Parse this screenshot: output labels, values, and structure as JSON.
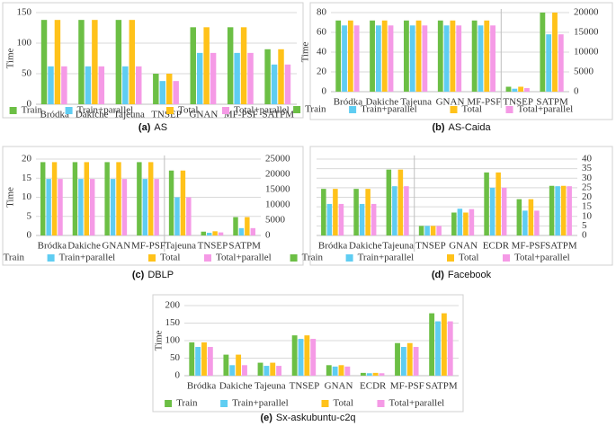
{
  "chart_data": [
    {
      "type": "bar",
      "label": "(a)",
      "title": "AS",
      "ylabel": "Time",
      "categories": [
        "Bródka",
        "Dakiche",
        "Tajeuna",
        "TNSEP",
        "GNAN",
        "MF-PSF",
        "SATPM"
      ],
      "ylim": [
        0,
        150
      ],
      "yticks": [
        0,
        50,
        100,
        150
      ],
      "grid": true,
      "series": [
        {
          "name": "Train",
          "color": "#6cbf45",
          "values": [
            138,
            138,
            138,
            50,
            126,
            126,
            90
          ]
        },
        {
          "name": "Train+parallel",
          "color": "#5fcdf2",
          "values": [
            62,
            62,
            62,
            38,
            84,
            84,
            65
          ]
        },
        {
          "name": "Total",
          "color": "#ffc21a",
          "values": [
            138,
            138,
            138,
            50,
            126,
            126,
            90
          ]
        },
        {
          "name": "Total+parallel",
          "color": "#f59ae6",
          "values": [
            62,
            62,
            62,
            38,
            84,
            84,
            65
          ]
        }
      ]
    },
    {
      "type": "bar",
      "label": "(b)",
      "title": "AS-Caida",
      "ylabel": "Time",
      "categories": [
        "Bródka",
        "Dakiche",
        "Tajeuna",
        "GNAN",
        "MF-PSF",
        "TNSEP",
        "SATPM"
      ],
      "ylim": [
        0,
        80
      ],
      "yticks": [
        0,
        20,
        40,
        60,
        80
      ],
      "y2lim": [
        0,
        20000
      ],
      "y2ticks": [
        0,
        5000,
        10000,
        15000,
        20000
      ],
      "grid": true,
      "series": [
        {
          "name": "Train",
          "color": "#6cbf45",
          "values": [
            72,
            72,
            72,
            72,
            72,
            null,
            null
          ]
        },
        {
          "name": "Train+parallel",
          "color": "#5fcdf2",
          "values": [
            67,
            67,
            67,
            67,
            67,
            null,
            null
          ]
        },
        {
          "name": "Total",
          "color": "#ffc21a",
          "values": [
            72,
            72,
            72,
            72,
            72,
            null,
            null
          ]
        },
        {
          "name": "Total+parallel",
          "color": "#f59ae6",
          "values": [
            67,
            67,
            67,
            67,
            67,
            null,
            null
          ]
        },
        {
          "color": "#6cbf45",
          "axis": "y2",
          "values": [
            null,
            null,
            null,
            null,
            null,
            1250,
            20000
          ]
        },
        {
          "color": "#5fcdf2",
          "axis": "y2",
          "values": [
            null,
            null,
            null,
            null,
            null,
            750,
            14500
          ]
        },
        {
          "color": "#ffc21a",
          "axis": "y2",
          "values": [
            null,
            null,
            null,
            null,
            null,
            1250,
            20000
          ]
        },
        {
          "color": "#f59ae6",
          "axis": "y2",
          "values": [
            null,
            null,
            null,
            null,
            null,
            900,
            14500
          ]
        }
      ]
    },
    {
      "type": "bar",
      "label": "(c)",
      "title": "DBLP",
      "ylabel": "Time",
      "categories": [
        "Bródka",
        "Dakiche",
        "GNAN",
        "MF-PSF",
        "Tajeuna",
        "TNSEP",
        "SATPM"
      ],
      "ylim": [
        0,
        20
      ],
      "yticks": [
        0,
        5,
        10,
        15,
        20
      ],
      "y2lim": [
        0,
        25000
      ],
      "y2ticks": [
        0,
        5000,
        10000,
        15000,
        20000,
        25000
      ],
      "grid": true,
      "series": [
        {
          "name": "Train",
          "color": "#6cbf45",
          "values": [
            19.2,
            19.2,
            19.2,
            19.2,
            null,
            null,
            null
          ]
        },
        {
          "name": "Train+parallel",
          "color": "#5fcdf2",
          "values": [
            14.8,
            14.8,
            14.8,
            14.8,
            null,
            null,
            null
          ]
        },
        {
          "name": "Total",
          "color": "#ffc21a",
          "values": [
            19.2,
            19.2,
            19.2,
            19.2,
            null,
            null,
            null
          ]
        },
        {
          "name": "Total+parallel",
          "color": "#f59ae6",
          "values": [
            14.8,
            14.8,
            14.8,
            14.8,
            null,
            null,
            null
          ]
        },
        {
          "color": "#6cbf45",
          "axis": "y2",
          "values": [
            null,
            null,
            null,
            null,
            21250,
            1250,
            6000
          ]
        },
        {
          "color": "#5fcdf2",
          "axis": "y2",
          "values": [
            null,
            null,
            null,
            null,
            12500,
            875,
            2400
          ]
        },
        {
          "color": "#ffc21a",
          "axis": "y2",
          "values": [
            null,
            null,
            null,
            null,
            21250,
            1375,
            6000
          ]
        },
        {
          "color": "#f59ae6",
          "axis": "y2",
          "values": [
            null,
            null,
            null,
            null,
            12500,
            1000,
            2400
          ]
        }
      ]
    },
    {
      "type": "bar",
      "label": "(d)",
      "title": "Facebook",
      "categories": [
        "Bródka",
        "Dakiche",
        "Tajeuna",
        "TNSEP",
        "GNAN",
        "ECDR",
        "MF-PSF",
        "SATPM"
      ],
      "y2lim": [
        0,
        40
      ],
      "y2ticks": [
        0,
        5,
        10,
        15,
        20,
        25,
        30,
        35,
        40
      ],
      "grid": true,
      "series": [
        {
          "name": "Train",
          "color": "#6cbf45",
          "axis": "y2",
          "values": [
            24.4,
            24.4,
            34.5,
            5,
            12,
            33,
            19,
            26
          ]
        },
        {
          "name": "Train+parallel",
          "color": "#5fcdf2",
          "axis": "y2",
          "values": [
            16.5,
            16.5,
            25.8,
            5,
            14,
            25,
            13,
            25.8
          ]
        },
        {
          "name": "Total",
          "color": "#ffc21a",
          "axis": "y2",
          "values": [
            24.4,
            24.4,
            34.5,
            5,
            12,
            33,
            19,
            26
          ]
        },
        {
          "name": "Total+parallel",
          "color": "#f59ae6",
          "axis": "y2",
          "values": [
            16.5,
            16.5,
            25.8,
            5,
            13.8,
            25,
            13,
            25.8
          ]
        }
      ]
    },
    {
      "type": "bar",
      "label": "(e)",
      "title": "Sx-askubuntu-c2q",
      "ylabel": "Time",
      "categories": [
        "Bródka",
        "Dakiche",
        "Tajeuna",
        "TNSEP",
        "GNAN",
        "ECDR",
        "MF-PSF",
        "SATPM"
      ],
      "ylim": [
        0,
        200
      ],
      "yticks": [
        0,
        50,
        100,
        150,
        200
      ],
      "grid": true,
      "series": [
        {
          "name": "Train",
          "color": "#6cbf45",
          "values": [
            95,
            60,
            37,
            115,
            30,
            8,
            93,
            178
          ]
        },
        {
          "name": "Train+parallel",
          "color": "#5fcdf2",
          "values": [
            82,
            30,
            28,
            105,
            26,
            7,
            82,
            155
          ]
        },
        {
          "name": "Total",
          "color": "#ffc21a",
          "values": [
            95,
            60,
            37,
            115,
            30,
            8,
            93,
            178
          ]
        },
        {
          "name": "Total+parallel",
          "color": "#f59ae6",
          "values": [
            82,
            30,
            28,
            105,
            26,
            7,
            82,
            155
          ]
        }
      ]
    }
  ]
}
